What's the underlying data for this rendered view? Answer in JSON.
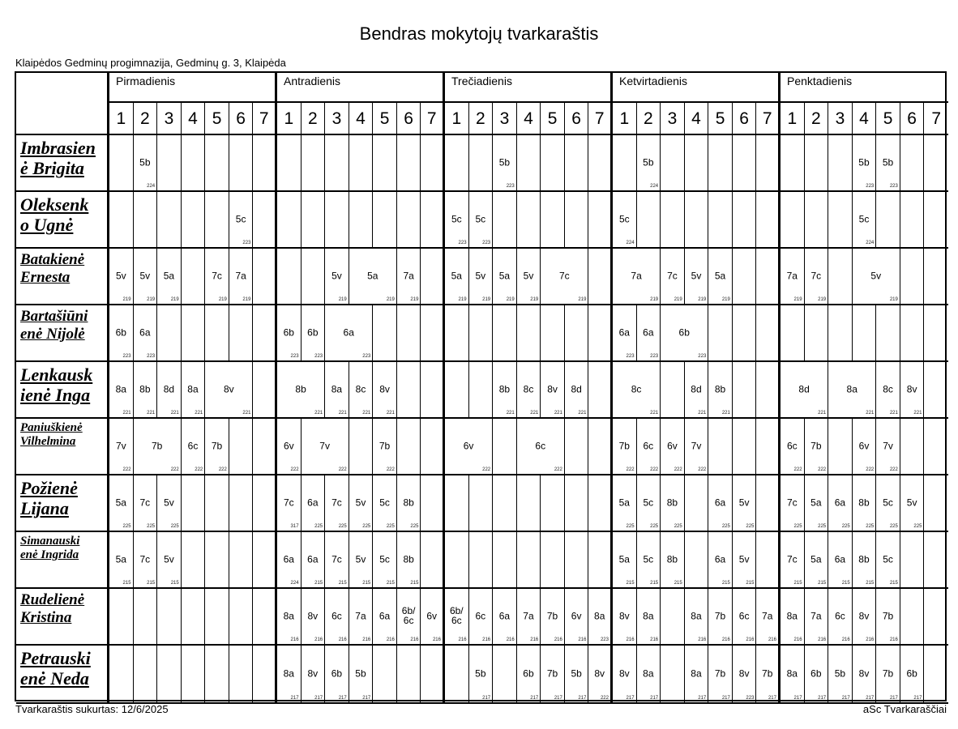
{
  "title": "Bendras mokytojų tvarkaraštis",
  "school": "Klaipėdos Gedminų progimnazija, Gedminų g. 3, Klaipėda",
  "days": [
    "Pirmadienis",
    "Antradienis",
    "Trečiadienis",
    "Ketvirtadienis",
    "Penktadienis"
  ],
  "periods": [
    "1",
    "2",
    "3",
    "4",
    "5",
    "6",
    "7"
  ],
  "teachers": [
    {
      "name_line1": "Imbrasien",
      "name_line2": "ė Brigita",
      "days": [
        [
          {},
          {
            "cls": "5b",
            "room": "224"
          },
          {},
          {},
          {},
          {},
          {}
        ],
        [
          {},
          {},
          {},
          {},
          {},
          {},
          {}
        ],
        [
          {},
          {},
          {
            "cls": "5b",
            "room": "223"
          },
          {},
          {},
          {},
          {}
        ],
        [
          {},
          {
            "cls": "5b",
            "room": "224"
          },
          {},
          {},
          {},
          {},
          {}
        ],
        [
          {},
          {},
          {},
          {
            "cls": "5b",
            "room": "223"
          },
          {
            "cls": "5b",
            "room": "223"
          },
          {},
          {}
        ]
      ]
    },
    {
      "name_line1": "Oleksenk",
      "name_line2": "o Ugnė",
      "days": [
        [
          {},
          {},
          {},
          {},
          {},
          {
            "cls": "5c",
            "room": "223"
          },
          {}
        ],
        [
          {},
          {},
          {},
          {},
          {},
          {},
          {}
        ],
        [
          {
            "cls": "5c",
            "room": "223"
          },
          {
            "cls": "5c",
            "room": "223"
          },
          {},
          {},
          {},
          {},
          {}
        ],
        [
          {
            "cls": "5c",
            "room": "224"
          },
          {},
          {},
          {},
          {},
          {},
          {}
        ],
        [
          {},
          {},
          {},
          {
            "cls": "5c",
            "room": "224"
          },
          {},
          {},
          {}
        ]
      ]
    },
    {
      "name_line1": "Batakienė",
      "name_line2": "Ernesta",
      "days": [
        [
          {
            "cls": "5v",
            "room": "219"
          },
          {
            "cls": "5v",
            "room": "219"
          },
          {
            "cls": "5a",
            "room": "219"
          },
          {},
          {
            "cls": "7c",
            "room": "219"
          },
          {
            "cls": "7a",
            "room": "219"
          },
          {}
        ],
        [
          {},
          {},
          {
            "cls": "5v",
            "room": "219"
          },
          {
            "cls": "5a",
            "room": "219",
            "span": 2
          },
          {
            "cls": "7a",
            "room": "219"
          },
          {}
        ],
        [
          {
            "cls": "5a",
            "room": "219"
          },
          {
            "cls": "5v",
            "room": "219"
          },
          {
            "cls": "5a",
            "room": "219"
          },
          {
            "cls": "5v",
            "room": "219"
          },
          {
            "cls": "7c",
            "room": "219",
            "span": 2
          },
          {}
        ],
        [
          {
            "cls": "7a",
            "room": "219",
            "span": 2
          },
          {
            "cls": "7c",
            "room": "219"
          },
          {
            "cls": "5v",
            "room": "219"
          },
          {
            "cls": "5a",
            "room": "219"
          },
          {},
          {}
        ],
        [
          {
            "cls": "7a",
            "room": "219"
          },
          {
            "cls": "7c",
            "room": "219"
          },
          {},
          {
            "cls": "5v",
            "room": "219",
            "span": 2
          },
          {},
          {}
        ]
      ]
    },
    {
      "name_line1": "Bartašiūni",
      "name_line2": "enė Nijolė",
      "days": [
        [
          {
            "cls": "6b",
            "room": "223"
          },
          {
            "cls": "6a",
            "room": "223"
          },
          {},
          {},
          {},
          {},
          {}
        ],
        [
          {
            "cls": "6b",
            "room": "223"
          },
          {
            "cls": "6b",
            "room": "223"
          },
          {
            "cls": "6a",
            "room": "223",
            "span": 2
          },
          {},
          {},
          {}
        ],
        [
          {},
          {},
          {},
          {},
          {},
          {},
          {}
        ],
        [
          {
            "cls": "6a",
            "room": "223"
          },
          {
            "cls": "6a",
            "room": "223"
          },
          {
            "cls": "6b",
            "room": "223",
            "span": 2
          },
          {},
          {},
          {}
        ],
        [
          {},
          {},
          {},
          {},
          {},
          {},
          {}
        ]
      ]
    },
    {
      "name_line1": "Lenkausk",
      "name_line2": "ienė Inga",
      "days": [
        [
          {
            "cls": "8a",
            "room": "221"
          },
          {
            "cls": "8b",
            "room": "221"
          },
          {
            "cls": "8d",
            "room": "221"
          },
          {
            "cls": "8a",
            "room": "221"
          },
          {
            "cls": "8v",
            "room": "221",
            "span": 2
          },
          {}
        ],
        [
          {
            "cls": "8b",
            "room": "221",
            "span": 2
          },
          {
            "cls": "8a",
            "room": "221"
          },
          {
            "cls": "8c",
            "room": "221"
          },
          {
            "cls": "8v",
            "room": "221"
          },
          {},
          {}
        ],
        [
          {},
          {},
          {
            "cls": "8b",
            "room": "221"
          },
          {
            "cls": "8c",
            "room": "221"
          },
          {
            "cls": "8v",
            "room": "221"
          },
          {
            "cls": "8d",
            "room": "221"
          },
          {}
        ],
        [
          {
            "cls": "8c",
            "room": "221",
            "span": 2
          },
          {},
          {
            "cls": "8d",
            "room": "221"
          },
          {
            "cls": "8b",
            "room": "221"
          },
          {},
          {}
        ],
        [
          {
            "cls": "8d",
            "room": "221",
            "span": 2
          },
          {
            "cls": "8a",
            "room": "221",
            "span": 2
          },
          {
            "cls": "8c",
            "room": "221"
          },
          {
            "cls": "8v",
            "room": "221"
          },
          {}
        ]
      ]
    },
    {
      "name_line1": "Paniuškienė",
      "name_line2": "Vilhelmina",
      "days": [
        [
          {
            "cls": "7v",
            "room": "222"
          },
          {
            "cls": "7b",
            "room": "222",
            "span": 2
          },
          {
            "cls": "6c",
            "room": "222"
          },
          {
            "cls": "7b",
            "room": "222"
          },
          {},
          {}
        ],
        [
          {
            "cls": "6v",
            "room": "222"
          },
          {
            "cls": "7v",
            "room": "222",
            "span": 2
          },
          {},
          {
            "cls": "7b",
            "room": "222"
          },
          {},
          {}
        ],
        [
          {
            "cls": "6v",
            "room": "222",
            "span": 2
          },
          {},
          {
            "cls": "6c",
            "room": "222",
            "span": 2
          },
          {},
          {}
        ],
        [
          {
            "cls": "7b",
            "room": "222"
          },
          {
            "cls": "6c",
            "room": "222"
          },
          {
            "cls": "6v",
            "room": "222"
          },
          {
            "cls": "7v",
            "room": "222"
          },
          {},
          {},
          {}
        ],
        [
          {
            "cls": "6c",
            "room": "222"
          },
          {
            "cls": "7b",
            "room": "222"
          },
          {},
          {
            "cls": "6v",
            "room": "222"
          },
          {
            "cls": "7v",
            "room": "222"
          },
          {},
          {}
        ]
      ]
    },
    {
      "name_line1": "Požienė",
      "name_line2": "Lijana",
      "days": [
        [
          {
            "cls": "5a",
            "room": "225"
          },
          {
            "cls": "7c",
            "room": "225"
          },
          {
            "cls": "5v",
            "room": "225"
          },
          {},
          {},
          {},
          {}
        ],
        [
          {
            "cls": "7c",
            "room": "317"
          },
          {
            "cls": "6a",
            "room": "225"
          },
          {
            "cls": "7c",
            "room": "225"
          },
          {
            "cls": "5v",
            "room": "225"
          },
          {
            "cls": "5c",
            "room": "225"
          },
          {
            "cls": "8b",
            "room": "225"
          },
          {}
        ],
        [
          {},
          {},
          {},
          {},
          {},
          {},
          {}
        ],
        [
          {
            "cls": "5a",
            "room": "225"
          },
          {
            "cls": "5c",
            "room": "225"
          },
          {
            "cls": "8b",
            "room": "225"
          },
          {},
          {
            "cls": "6a",
            "room": "225"
          },
          {
            "cls": "5v",
            "room": "225"
          },
          {}
        ],
        [
          {
            "cls": "7c",
            "room": "225"
          },
          {
            "cls": "5a",
            "room": "225"
          },
          {
            "cls": "6a",
            "room": "225"
          },
          {
            "cls": "8b",
            "room": "225"
          },
          {
            "cls": "5c",
            "room": "225"
          },
          {
            "cls": "5v",
            "room": "225"
          },
          {}
        ]
      ]
    },
    {
      "name_line1": "Simanauski",
      "name_line2": "enė Ingrida",
      "days": [
        [
          {
            "cls": "5a",
            "room": "215"
          },
          {
            "cls": "7c",
            "room": "215"
          },
          {
            "cls": "5v",
            "room": "215"
          },
          {},
          {},
          {},
          {}
        ],
        [
          {
            "cls": "6a",
            "room": "224"
          },
          {
            "cls": "6a",
            "room": "215"
          },
          {
            "cls": "7c",
            "room": "215"
          },
          {
            "cls": "5v",
            "room": "215"
          },
          {
            "cls": "5c",
            "room": "215"
          },
          {
            "cls": "8b",
            "room": "215"
          },
          {}
        ],
        [
          {},
          {},
          {},
          {},
          {},
          {},
          {}
        ],
        [
          {
            "cls": "5a",
            "room": "215"
          },
          {
            "cls": "5c",
            "room": "215"
          },
          {
            "cls": "8b",
            "room": "215"
          },
          {},
          {
            "cls": "6a",
            "room": "215"
          },
          {
            "cls": "5v",
            "room": "215"
          },
          {}
        ],
        [
          {
            "cls": "7c",
            "room": "215"
          },
          {
            "cls": "5a",
            "room": "215"
          },
          {
            "cls": "6a",
            "room": "215"
          },
          {
            "cls": "8b",
            "room": "215"
          },
          {
            "cls": "5c",
            "room": "215"
          },
          {},
          {}
        ]
      ]
    },
    {
      "name_line1": "Rudelienė",
      "name_line2": "Kristina",
      "days": [
        [
          {},
          {},
          {},
          {},
          {},
          {},
          {}
        ],
        [
          {
            "cls": "8a",
            "room": "216"
          },
          {
            "cls": "8v",
            "room": "216"
          },
          {
            "cls": "6c",
            "room": "216"
          },
          {
            "cls": "7a",
            "room": "216"
          },
          {
            "cls": "6a",
            "room": "216"
          },
          {
            "cls": "6b/\n6c",
            "room": "216"
          },
          {
            "cls": "6v",
            "room": "216"
          }
        ],
        [
          {
            "cls": "6b/\n6c",
            "room": "216"
          },
          {
            "cls": "6c",
            "room": "216"
          },
          {
            "cls": "6a",
            "room": "216"
          },
          {
            "cls": "7a",
            "room": "216"
          },
          {
            "cls": "7b",
            "room": "216"
          },
          {
            "cls": "6v",
            "room": "216"
          },
          {
            "cls": "8a",
            "room": "223"
          }
        ],
        [
          {
            "cls": "8v",
            "room": "216"
          },
          {
            "cls": "8a",
            "room": "216"
          },
          {},
          {
            "cls": "8a",
            "room": "216"
          },
          {
            "cls": "7b",
            "room": "216"
          },
          {
            "cls": "6c",
            "room": "216"
          },
          {
            "cls": "7a",
            "room": "216"
          }
        ],
        [
          {
            "cls": "8a",
            "room": "216"
          },
          {
            "cls": "7a",
            "room": "216"
          },
          {
            "cls": "6c",
            "room": "216"
          },
          {
            "cls": "8v",
            "room": "216"
          },
          {
            "cls": "7b",
            "room": "216"
          },
          {},
          {}
        ]
      ]
    },
    {
      "name_line1": "Petrauski",
      "name_line2": "enė Neda",
      "days": [
        [
          {},
          {},
          {},
          {},
          {},
          {},
          {}
        ],
        [
          {
            "cls": "8a",
            "room": "217"
          },
          {
            "cls": "8v",
            "room": "217"
          },
          {
            "cls": "6b",
            "room": "217"
          },
          {
            "cls": "5b",
            "room": "217"
          },
          {},
          {},
          {}
        ],
        [
          {},
          {
            "cls": "5b",
            "room": "217"
          },
          {},
          {
            "cls": "6b",
            "room": "217"
          },
          {
            "cls": "7b",
            "room": "217"
          },
          {
            "cls": "5b",
            "room": "217"
          },
          {
            "cls": "8v",
            "room": "222"
          }
        ],
        [
          {
            "cls": "8v",
            "room": "217"
          },
          {
            "cls": "8a",
            "room": "217"
          },
          {},
          {
            "cls": "8a",
            "room": "217"
          },
          {
            "cls": "7b",
            "room": "217"
          },
          {
            "cls": "8v",
            "room": "223"
          },
          {
            "cls": "7b",
            "room": "217"
          }
        ],
        [
          {
            "cls": "8a",
            "room": "217"
          },
          {
            "cls": "6b",
            "room": "217"
          },
          {
            "cls": "5b",
            "room": "217"
          },
          {
            "cls": "8v",
            "room": "217"
          },
          {
            "cls": "7b",
            "room": "217"
          },
          {
            "cls": "6b",
            "room": "217"
          },
          {}
        ]
      ]
    }
  ],
  "footer": {
    "created": "Tvarkaraštis sukurtas: 12/6/2025",
    "brand": "aSc Tvarkaraščiai"
  }
}
